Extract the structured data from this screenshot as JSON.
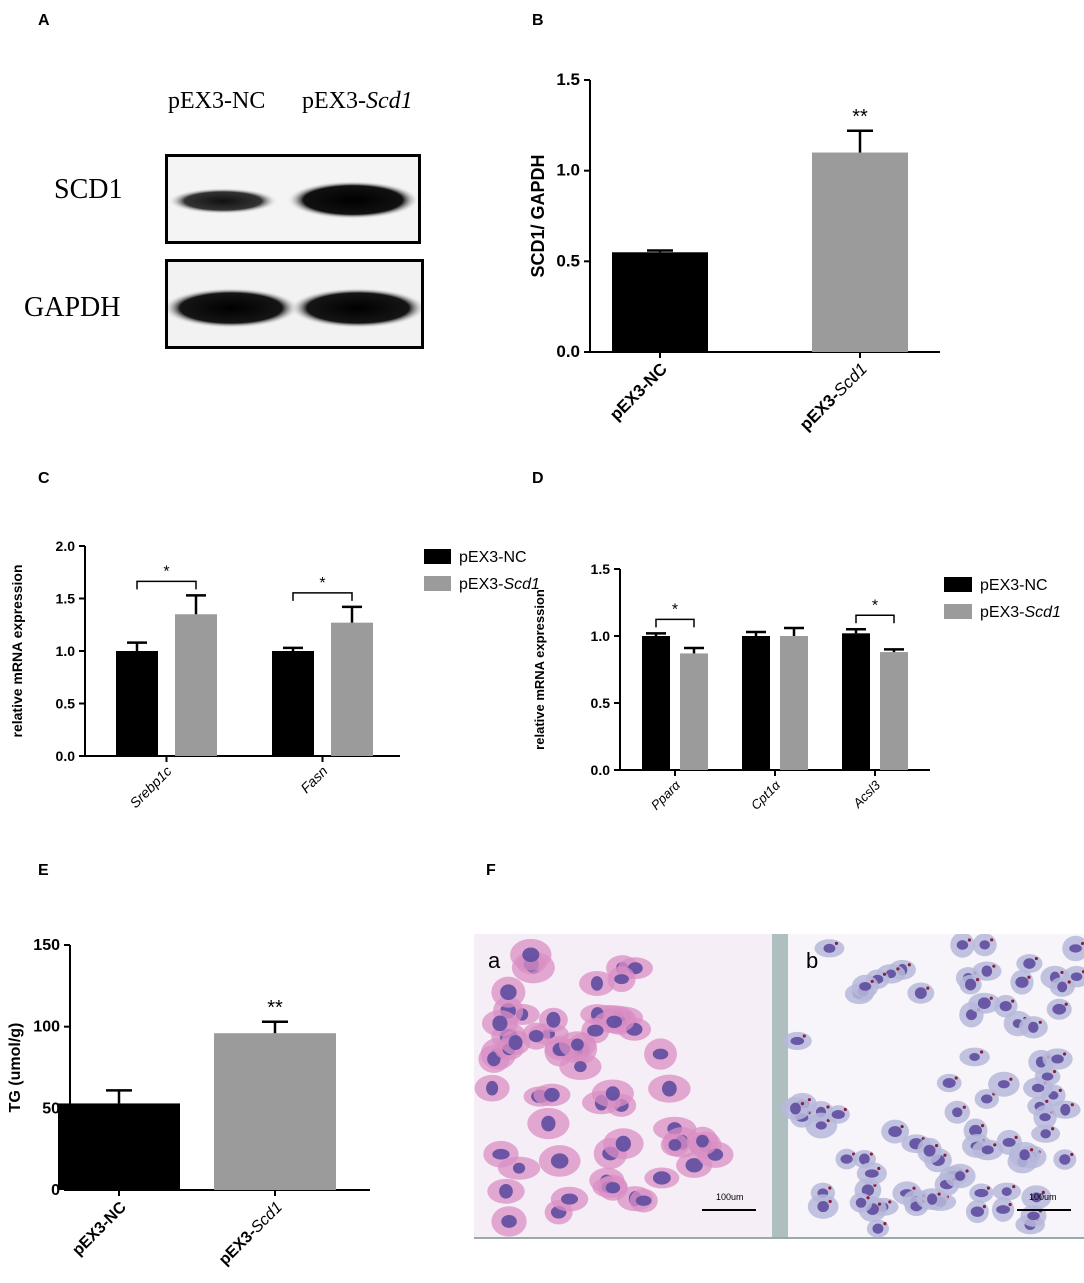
{
  "panel_labels": {
    "A": "A",
    "B": "B",
    "C": "C",
    "D": "D",
    "E": "E",
    "F": "F"
  },
  "western_blot": {
    "columns": [
      "pEX3-NC",
      "pEX3-Scd1"
    ],
    "column_prefix_2": "pEX3-",
    "column_italic_2": "Scd1",
    "rows": [
      "SCD1",
      "GAPDH"
    ]
  },
  "micrographs": {
    "a_label": "a",
    "b_label": "b",
    "scale_bar": "100um"
  },
  "colors": {
    "nc": "#000000",
    "scd1": "#9b9b9b",
    "stain_pink": "#d98fc4",
    "stain_purple": "#5e4c9e",
    "divider": "#aebfbf"
  },
  "chart_data": [
    {
      "panel": "B",
      "type": "bar",
      "categories": [
        "pEX3-NC",
        "pEX3-Scd1"
      ],
      "values": [
        0.55,
        1.1
      ],
      "errors": [
        0.01,
        0.12
      ],
      "colors": [
        "#000000",
        "#9b9b9b"
      ],
      "ylabel": "SCD1/ GAPDH",
      "ylim": [
        0,
        1.5
      ],
      "yticks": [
        "0.0",
        "0.5",
        "1.0",
        "1.5"
      ],
      "significance": [
        "",
        "**"
      ]
    },
    {
      "panel": "C",
      "type": "bar",
      "categories": [
        "Srebp1c",
        "Fasn"
      ],
      "series": [
        {
          "name": "pEX3-NC",
          "values": [
            1.0,
            1.0
          ],
          "errors": [
            0.08,
            0.03
          ],
          "color": "#000000"
        },
        {
          "name": "pEX3-Scd1",
          "values": [
            1.35,
            1.27
          ],
          "errors": [
            0.18,
            0.15
          ],
          "color": "#9b9b9b"
        }
      ],
      "ylabel": "relative mRNA expression",
      "ylim": [
        0,
        2.0
      ],
      "yticks": [
        "0.0",
        "0.5",
        "1.0",
        "1.5",
        "2.0"
      ],
      "significance": [
        "*",
        "*"
      ],
      "legend": "right"
    },
    {
      "panel": "D",
      "type": "bar",
      "categories": [
        "Pparα",
        "Cpt1α",
        "Acsl3"
      ],
      "series": [
        {
          "name": "pEX3-NC",
          "values": [
            1.0,
            1.0,
            1.02
          ],
          "errors": [
            0.02,
            0.03,
            0.03
          ],
          "color": "#000000"
        },
        {
          "name": "pEX3-Scd1",
          "values": [
            0.87,
            1.0,
            0.88
          ],
          "errors": [
            0.04,
            0.06,
            0.02
          ],
          "color": "#9b9b9b"
        }
      ],
      "ylabel": "relative mRNA expression",
      "ylim": [
        0,
        1.5
      ],
      "yticks": [
        "0.0",
        "0.5",
        "1.0",
        "1.5"
      ],
      "significance": [
        "*",
        "",
        "*"
      ],
      "legend": "right"
    },
    {
      "panel": "E",
      "type": "bar",
      "categories": [
        "pEX3-NC",
        "pEX3-Scd1"
      ],
      "values": [
        53,
        96
      ],
      "errors": [
        8,
        7
      ],
      "colors": [
        "#000000",
        "#9b9b9b"
      ],
      "ylabel": "TG (umol/g)",
      "ylim": [
        0,
        150
      ],
      "yticks": [
        "0",
        "50",
        "100",
        "150"
      ],
      "significance": [
        "",
        "**"
      ]
    }
  ]
}
